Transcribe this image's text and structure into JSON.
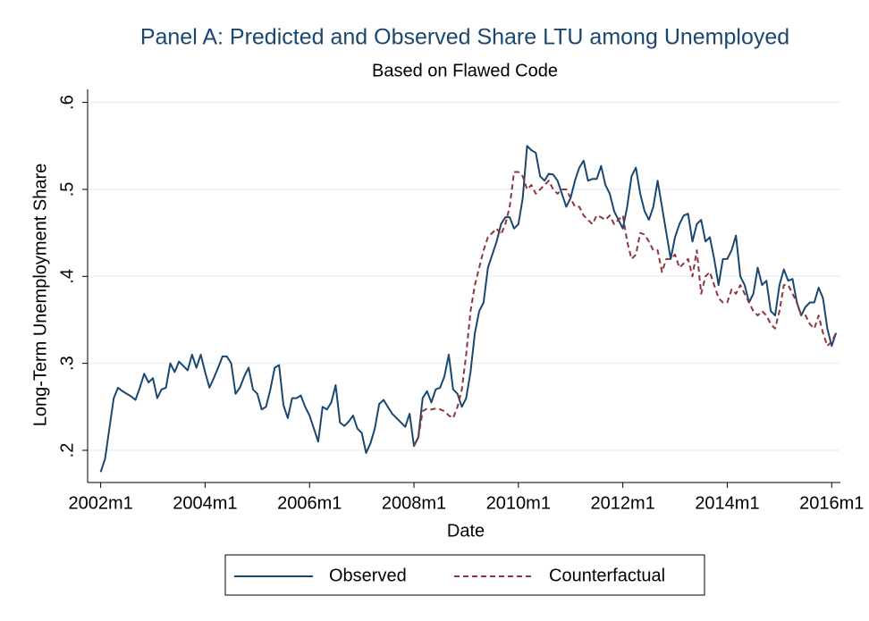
{
  "chart_data": {
    "type": "line",
    "title": "Panel A: Predicted and Observed Share LTU among Unemployed",
    "subtitle": "Based on Flawed Code",
    "x_label": "Date",
    "y_label": "Long-Term Unemployment Share",
    "x": [
      "2002m1",
      "2002m2",
      "2002m3",
      "2002m4",
      "2002m5",
      "2002m6",
      "2002m7",
      "2002m8",
      "2002m9",
      "2002m10",
      "2002m11",
      "2002m12",
      "2003m1",
      "2003m2",
      "2003m3",
      "2003m4",
      "2003m5",
      "2003m6",
      "2003m7",
      "2003m8",
      "2003m9",
      "2003m10",
      "2003m11",
      "2003m12",
      "2004m1",
      "2004m2",
      "2004m3",
      "2004m4",
      "2004m5",
      "2004m6",
      "2004m7",
      "2004m8",
      "2004m9",
      "2004m10",
      "2004m11",
      "2004m12",
      "2005m1",
      "2005m2",
      "2005m3",
      "2005m4",
      "2005m5",
      "2005m6",
      "2005m7",
      "2005m8",
      "2005m9",
      "2005m10",
      "2005m11",
      "2005m12",
      "2006m1",
      "2006m2",
      "2006m3",
      "2006m4",
      "2006m5",
      "2006m6",
      "2006m7",
      "2006m8",
      "2006m9",
      "2006m10",
      "2006m11",
      "2006m12",
      "2007m1",
      "2007m2",
      "2007m3",
      "2007m4",
      "2007m5",
      "2007m6",
      "2007m7",
      "2007m8",
      "2007m9",
      "2007m10",
      "2007m11",
      "2007m12",
      "2008m1",
      "2008m2",
      "2008m3",
      "2008m4",
      "2008m5",
      "2008m6",
      "2008m7",
      "2008m8",
      "2008m9",
      "2008m10",
      "2008m11",
      "2008m12",
      "2009m1",
      "2009m2",
      "2009m3",
      "2009m4",
      "2009m5",
      "2009m6",
      "2009m7",
      "2009m8",
      "2009m9",
      "2009m10",
      "2009m11",
      "2009m12",
      "2010m1",
      "2010m2",
      "2010m3",
      "2010m4",
      "2010m5",
      "2010m6",
      "2010m7",
      "2010m8",
      "2010m9",
      "2010m10",
      "2010m11",
      "2010m12",
      "2011m1",
      "2011m2",
      "2011m3",
      "2011m4",
      "2011m5",
      "2011m6",
      "2011m7",
      "2011m8",
      "2011m9",
      "2011m10",
      "2011m11",
      "2011m12",
      "2012m1",
      "2012m2",
      "2012m3",
      "2012m4",
      "2012m5",
      "2012m6",
      "2012m7",
      "2012m8",
      "2012m9",
      "2012m10",
      "2012m11",
      "2012m12",
      "2013m1",
      "2013m2",
      "2013m3",
      "2013m4",
      "2013m5",
      "2013m6",
      "2013m7",
      "2013m8",
      "2013m9",
      "2013m10",
      "2013m11",
      "2013m12",
      "2014m1",
      "2014m2",
      "2014m3",
      "2014m4",
      "2014m5",
      "2014m6",
      "2014m7",
      "2014m8",
      "2014m9",
      "2014m10",
      "2014m11",
      "2014m12",
      "2015m1",
      "2015m2",
      "2015m3",
      "2015m4",
      "2015m5",
      "2015m6",
      "2015m7",
      "2015m8",
      "2015m9",
      "2015m10",
      "2015m11",
      "2015m12",
      "2016m1",
      "2016m2"
    ],
    "series": [
      {
        "name": "Observed",
        "color": "#1a476f",
        "dash": false,
        "values": [
          0.175,
          0.19,
          0.225,
          0.26,
          0.272,
          0.268,
          0.265,
          0.262,
          0.258,
          0.272,
          0.288,
          0.278,
          0.283,
          0.26,
          0.27,
          0.272,
          0.3,
          0.29,
          0.302,
          0.297,
          0.292,
          0.31,
          0.295,
          0.31,
          0.29,
          0.272,
          0.283,
          0.295,
          0.308,
          0.308,
          0.3,
          0.265,
          0.272,
          0.285,
          0.295,
          0.27,
          0.265,
          0.247,
          0.25,
          0.27,
          0.295,
          0.298,
          0.252,
          0.237,
          0.26,
          0.26,
          0.263,
          0.25,
          0.24,
          0.225,
          0.21,
          0.25,
          0.247,
          0.255,
          0.275,
          0.232,
          0.228,
          0.233,
          0.24,
          0.225,
          0.22,
          0.197,
          0.208,
          0.225,
          0.253,
          0.258,
          0.25,
          0.242,
          0.237,
          0.232,
          0.227,
          0.242,
          0.205,
          0.215,
          0.26,
          0.268,
          0.255,
          0.27,
          0.272,
          0.285,
          0.31,
          0.27,
          0.265,
          0.25,
          0.26,
          0.29,
          0.335,
          0.36,
          0.37,
          0.41,
          0.425,
          0.44,
          0.46,
          0.468,
          0.468,
          0.455,
          0.46,
          0.49,
          0.55,
          0.545,
          0.542,
          0.515,
          0.51,
          0.518,
          0.517,
          0.51,
          0.495,
          0.48,
          0.49,
          0.51,
          0.525,
          0.533,
          0.51,
          0.512,
          0.512,
          0.527,
          0.505,
          0.495,
          0.475,
          0.465,
          0.455,
          0.48,
          0.515,
          0.525,
          0.495,
          0.475,
          0.465,
          0.48,
          0.51,
          0.48,
          0.45,
          0.42,
          0.445,
          0.46,
          0.47,
          0.472,
          0.44,
          0.46,
          0.465,
          0.44,
          0.445,
          0.42,
          0.39,
          0.42,
          0.42,
          0.43,
          0.447,
          0.4,
          0.39,
          0.37,
          0.38,
          0.41,
          0.39,
          0.395,
          0.36,
          0.355,
          0.39,
          0.408,
          0.395,
          0.397,
          0.37,
          0.355,
          0.365,
          0.37,
          0.37,
          0.387,
          0.375,
          0.34,
          0.32,
          0.335
        ]
      },
      {
        "name": "Counterfactual",
        "color": "#90353b",
        "dash": true,
        "values": [
          null,
          null,
          null,
          null,
          null,
          null,
          null,
          null,
          null,
          null,
          null,
          null,
          null,
          null,
          null,
          null,
          null,
          null,
          null,
          null,
          null,
          null,
          null,
          null,
          null,
          null,
          null,
          null,
          null,
          null,
          null,
          null,
          null,
          null,
          null,
          null,
          null,
          null,
          null,
          null,
          null,
          null,
          null,
          null,
          null,
          null,
          null,
          null,
          null,
          null,
          null,
          null,
          null,
          null,
          null,
          null,
          null,
          null,
          null,
          null,
          null,
          null,
          null,
          null,
          null,
          null,
          null,
          null,
          null,
          null,
          null,
          null,
          0.205,
          0.215,
          0.245,
          0.248,
          0.247,
          0.248,
          0.247,
          0.245,
          0.24,
          0.237,
          0.25,
          0.27,
          0.31,
          0.36,
          0.39,
          0.41,
          0.43,
          0.445,
          0.45,
          0.455,
          0.448,
          0.46,
          0.48,
          0.52,
          0.52,
          0.515,
          0.5,
          0.505,
          0.495,
          0.5,
          0.505,
          0.51,
          0.5,
          0.495,
          0.5,
          0.5,
          0.49,
          0.48,
          0.48,
          0.47,
          0.465,
          0.46,
          0.47,
          0.468,
          0.465,
          0.47,
          0.46,
          0.465,
          0.47,
          0.44,
          0.42,
          0.425,
          0.45,
          0.448,
          0.44,
          0.43,
          0.43,
          0.405,
          0.42,
          0.42,
          0.425,
          0.41,
          0.415,
          0.42,
          0.4,
          0.43,
          0.38,
          0.4,
          0.405,
          0.39,
          0.375,
          0.37,
          0.37,
          0.385,
          0.38,
          0.39,
          0.38,
          0.37,
          0.36,
          0.355,
          0.36,
          0.355,
          0.345,
          0.34,
          0.36,
          0.39,
          0.39,
          0.38,
          0.37,
          0.355,
          0.355,
          0.345,
          0.34,
          0.355,
          0.335,
          0.32,
          0.325,
          0.335
        ]
      }
    ],
    "xlim": [
      "2001m10",
      "2016m3"
    ],
    "xticks": [
      "2002m1",
      "2004m1",
      "2006m1",
      "2008m1",
      "2010m1",
      "2012m1",
      "2014m1",
      "2016m1"
    ],
    "ylim": [
      0.163,
      0.615
    ],
    "yticks": [
      {
        "value": 0.2,
        "label": ".2"
      },
      {
        "value": 0.3,
        "label": ".3"
      },
      {
        "value": 0.4,
        "label": ".4"
      },
      {
        "value": 0.5,
        "label": ".5"
      },
      {
        "value": 0.6,
        "label": ".6"
      }
    ],
    "grid": true,
    "legend": "bottom"
  }
}
